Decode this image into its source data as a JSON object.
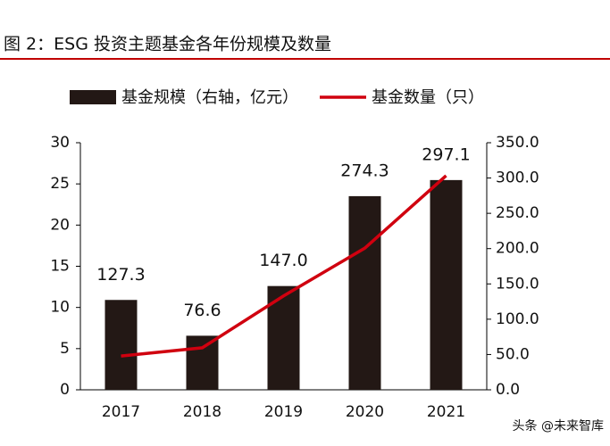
{
  "chart_data": {
    "type": "bar-line",
    "title": "图 2：ESG 投资主题基金各年份规模及数量",
    "watermark": "头条 @未来智库",
    "categories": [
      "2017",
      "2018",
      "2019",
      "2020",
      "2021"
    ],
    "series": [
      {
        "name": "基金规模（右轴，亿元）",
        "type": "bar",
        "axis": "y2",
        "color": "#231815",
        "values": [
          127.3,
          76.6,
          147.0,
          274.3,
          297.1
        ],
        "value_labels": [
          "127.3",
          "76.6",
          "147.0",
          "274.3",
          "297.1"
        ]
      },
      {
        "name": "基金数量（只）",
        "type": "line",
        "axis": "y",
        "color": "#d0000f",
        "values": [
          4.1,
          5.1,
          11.4,
          17.2,
          26.0
        ]
      }
    ],
    "ylim": [
      0,
      30
    ],
    "yticks": [
      0,
      5,
      10,
      15,
      20,
      25,
      30
    ],
    "y2lim": [
      0,
      350
    ],
    "y2ticks": [
      {
        "value": 0,
        "label": "0.0"
      },
      {
        "value": 50,
        "label": "50.0"
      },
      {
        "value": 100,
        "label": "100.0"
      },
      {
        "value": 150,
        "label": "150.0"
      },
      {
        "value": 200,
        "label": "200.0"
      },
      {
        "value": 250,
        "label": "250.0"
      },
      {
        "value": 300,
        "label": "300.0"
      },
      {
        "value": 350,
        "label": "350.0"
      }
    ]
  }
}
